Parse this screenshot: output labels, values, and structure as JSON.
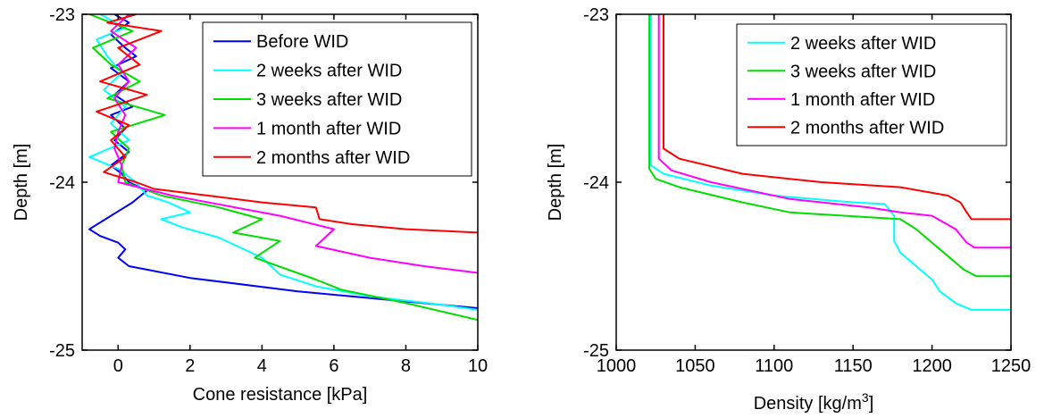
{
  "chart_data": [
    {
      "type": "line",
      "xlabel": "Cone resistance [kPa]",
      "ylabel": "Depth [m]",
      "xlim": [
        -1,
        10
      ],
      "ylim": [
        -25,
        -23
      ],
      "x_ticks": [
        "0",
        "2",
        "4",
        "6",
        "8",
        "10"
      ],
      "x_tick_values": [
        0,
        2,
        4,
        6,
        8,
        10
      ],
      "y_ticks": [
        "-23",
        "-24",
        "-25"
      ],
      "y_tick_values": [
        -23,
        -24,
        -25
      ],
      "grid": false,
      "legend_position": "top-right",
      "series": [
        {
          "name": "Before WID",
          "color": "#0000ff",
          "points": [
            [
              -0.1,
              -23.0
            ],
            [
              0.3,
              -23.05
            ],
            [
              -0.2,
              -23.12
            ],
            [
              0.2,
              -23.2
            ],
            [
              0.5,
              -23.25
            ],
            [
              -0.2,
              -23.32
            ],
            [
              0.3,
              -23.4
            ],
            [
              -0.1,
              -23.48
            ],
            [
              0.4,
              -23.55
            ],
            [
              -0.2,
              -23.6
            ],
            [
              0.2,
              -23.68
            ],
            [
              -0.1,
              -23.75
            ],
            [
              0.3,
              -23.82
            ],
            [
              -0.2,
              -23.9
            ],
            [
              0.1,
              -23.95
            ],
            [
              0.3,
              -24.0
            ],
            [
              0.8,
              -24.05
            ],
            [
              0.4,
              -24.12
            ],
            [
              -0.2,
              -24.2
            ],
            [
              -0.8,
              -24.28
            ],
            [
              -0.5,
              -24.32
            ],
            [
              0.0,
              -24.36
            ],
            [
              0.2,
              -24.4
            ],
            [
              0.0,
              -24.45
            ],
            [
              0.3,
              -24.5
            ],
            [
              2.0,
              -24.57
            ],
            [
              5.0,
              -24.65
            ],
            [
              8.0,
              -24.71
            ],
            [
              10.0,
              -24.75
            ]
          ]
        },
        {
          "name": "2 weeks after WID",
          "color": "#00ffff",
          "points": [
            [
              -0.5,
              -23.0
            ],
            [
              0.2,
              -23.08
            ],
            [
              -0.6,
              -23.15
            ],
            [
              -0.3,
              -23.25
            ],
            [
              0.1,
              -23.35
            ],
            [
              -0.4,
              -23.45
            ],
            [
              0.2,
              -23.55
            ],
            [
              -0.2,
              -23.65
            ],
            [
              0.3,
              -23.75
            ],
            [
              -0.8,
              -23.85
            ],
            [
              0.0,
              -23.92
            ],
            [
              0.5,
              -24.0
            ],
            [
              0.8,
              -24.08
            ],
            [
              1.4,
              -24.12
            ],
            [
              2.0,
              -24.18
            ],
            [
              1.2,
              -24.22
            ],
            [
              1.8,
              -24.27
            ],
            [
              2.8,
              -24.33
            ],
            [
              4.0,
              -24.45
            ],
            [
              4.5,
              -24.55
            ],
            [
              5.5,
              -24.62
            ],
            [
              7.0,
              -24.68
            ],
            [
              9.0,
              -24.73
            ],
            [
              10.0,
              -24.76
            ]
          ]
        },
        {
          "name": "3 weeks after WID",
          "color": "#00dd00",
          "points": [
            [
              -0.8,
              -23.0
            ],
            [
              0.4,
              -23.1
            ],
            [
              -0.7,
              -23.2
            ],
            [
              -0.2,
              -23.3
            ],
            [
              0.6,
              -23.4
            ],
            [
              -0.3,
              -23.5
            ],
            [
              1.3,
              -23.6
            ],
            [
              -0.2,
              -23.7
            ],
            [
              0.3,
              -23.8
            ],
            [
              0.1,
              -23.9
            ],
            [
              0.2,
              -24.0
            ],
            [
              1.2,
              -24.08
            ],
            [
              2.8,
              -24.15
            ],
            [
              4.0,
              -24.22
            ],
            [
              3.2,
              -24.3
            ],
            [
              4.5,
              -24.35
            ],
            [
              3.8,
              -24.45
            ],
            [
              5.5,
              -24.58
            ],
            [
              6.2,
              -24.64
            ],
            [
              8.0,
              -24.72
            ],
            [
              10.0,
              -24.82
            ]
          ]
        },
        {
          "name": "1 month after WID",
          "color": "#ff00ff",
          "points": [
            [
              0.3,
              -23.0
            ],
            [
              -0.2,
              -23.1
            ],
            [
              0.5,
              -23.2
            ],
            [
              0.0,
              -23.3
            ],
            [
              0.3,
              -23.4
            ],
            [
              -0.1,
              -23.5
            ],
            [
              0.2,
              -23.6
            ],
            [
              0.0,
              -23.7
            ],
            [
              -0.1,
              -23.8
            ],
            [
              0.1,
              -23.9
            ],
            [
              0.0,
              -24.0
            ],
            [
              1.5,
              -24.08
            ],
            [
              3.0,
              -24.14
            ],
            [
              4.5,
              -24.2
            ],
            [
              6.0,
              -24.28
            ],
            [
              5.5,
              -24.38
            ],
            [
              7.0,
              -24.45
            ],
            [
              8.5,
              -24.5
            ],
            [
              10.0,
              -24.54
            ]
          ]
        },
        {
          "name": "2 months after WID",
          "color": "#ff0000",
          "points": [
            [
              0.5,
              -23.0
            ],
            [
              -0.3,
              -23.05
            ],
            [
              1.2,
              -23.1
            ],
            [
              0.0,
              -23.2
            ],
            [
              0.6,
              -23.3
            ],
            [
              -0.5,
              -23.4
            ],
            [
              0.8,
              -23.48
            ],
            [
              -0.6,
              -23.58
            ],
            [
              0.3,
              -23.66
            ],
            [
              -0.2,
              -23.75
            ],
            [
              0.2,
              -23.85
            ],
            [
              -0.4,
              -23.94
            ],
            [
              0.5,
              -24.0
            ],
            [
              1.0,
              -24.04
            ],
            [
              2.5,
              -24.08
            ],
            [
              4.0,
              -24.12
            ],
            [
              5.5,
              -24.15
            ],
            [
              5.6,
              -24.22
            ],
            [
              6.5,
              -24.25
            ],
            [
              8.0,
              -24.28
            ],
            [
              10.0,
              -24.3
            ]
          ]
        }
      ]
    },
    {
      "type": "line",
      "xlabel": "Density [kg/m",
      "xlabel_sup": "3",
      "xlabel_suffix": "]",
      "ylabel": "Depth [m]",
      "xlim": [
        1000,
        1250
      ],
      "ylim": [
        -25,
        -23
      ],
      "x_ticks": [
        "1000",
        "1050",
        "1100",
        "1150",
        "1200",
        "1250"
      ],
      "x_tick_values": [
        1000,
        1050,
        1100,
        1150,
        1200,
        1250
      ],
      "y_ticks": [
        "-23",
        "-24",
        "-25"
      ],
      "y_tick_values": [
        -23,
        -24,
        -25
      ],
      "grid": false,
      "legend_position": "top-right",
      "series": [
        {
          "name": "2 weeks after WID",
          "color": "#00ffff",
          "points": [
            [
              1022,
              -23.0
            ],
            [
              1022,
              -23.9
            ],
            [
              1030,
              -23.95
            ],
            [
              1060,
              -24.02
            ],
            [
              1100,
              -24.08
            ],
            [
              1150,
              -24.12
            ],
            [
              1170,
              -24.13
            ],
            [
              1176,
              -24.2
            ],
            [
              1176,
              -24.35
            ],
            [
              1180,
              -24.42
            ],
            [
              1190,
              -24.5
            ],
            [
              1200,
              -24.58
            ],
            [
              1205,
              -24.65
            ],
            [
              1215,
              -24.72
            ],
            [
              1225,
              -24.76
            ],
            [
              1250,
              -24.76
            ]
          ]
        },
        {
          "name": "3 weeks after WID",
          "color": "#00dd00",
          "points": [
            [
              1021,
              -23.0
            ],
            [
              1021,
              -23.92
            ],
            [
              1025,
              -23.98
            ],
            [
              1040,
              -24.03
            ],
            [
              1080,
              -24.12
            ],
            [
              1110,
              -24.18
            ],
            [
              1180,
              -24.22
            ],
            [
              1190,
              -24.28
            ],
            [
              1200,
              -24.36
            ],
            [
              1210,
              -24.44
            ],
            [
              1220,
              -24.52
            ],
            [
              1228,
              -24.56
            ],
            [
              1250,
              -24.56
            ]
          ]
        },
        {
          "name": "1 month after WID",
          "color": "#ff00ff",
          "points": [
            [
              1027,
              -23.0
            ],
            [
              1027,
              -23.86
            ],
            [
              1035,
              -23.93
            ],
            [
              1060,
              -24.0
            ],
            [
              1110,
              -24.1
            ],
            [
              1160,
              -24.15
            ],
            [
              1180,
              -24.18
            ],
            [
              1200,
              -24.2
            ],
            [
              1215,
              -24.28
            ],
            [
              1222,
              -24.36
            ],
            [
              1227,
              -24.39
            ],
            [
              1250,
              -24.39
            ]
          ]
        },
        {
          "name": "2 months after WID",
          "color": "#ff0000",
          "points": [
            [
              1030,
              -23.0
            ],
            [
              1030,
              -23.8
            ],
            [
              1040,
              -23.86
            ],
            [
              1080,
              -23.95
            ],
            [
              1130,
              -24.0
            ],
            [
              1180,
              -24.03
            ],
            [
              1210,
              -24.08
            ],
            [
              1218,
              -24.12
            ],
            [
              1222,
              -24.18
            ],
            [
              1225,
              -24.22
            ],
            [
              1250,
              -24.22
            ]
          ]
        }
      ]
    }
  ]
}
